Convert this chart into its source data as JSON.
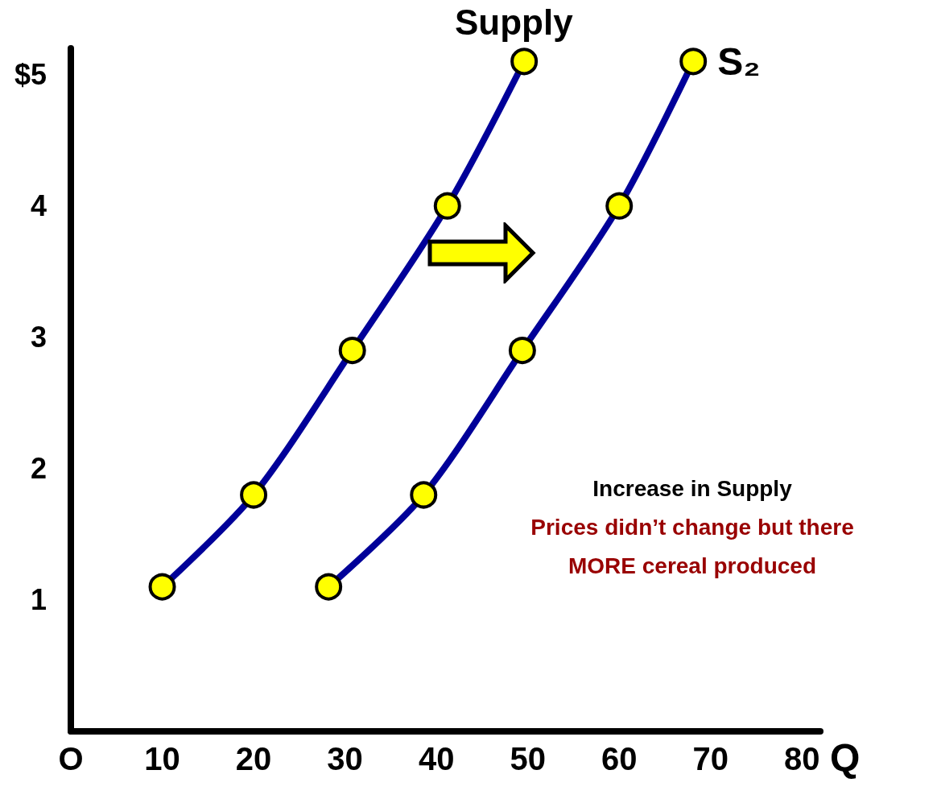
{
  "chart_data": {
    "type": "line",
    "title": "Supply",
    "xlabel": "Q",
    "xlim": [
      0,
      82
    ],
    "xticks": [
      {
        "value": 0,
        "label": "O"
      },
      10,
      20,
      30,
      40,
      50,
      60,
      70,
      80
    ],
    "ylim": [
      0,
      5.2
    ],
    "yticks": [
      1,
      2,
      3,
      4,
      {
        "value": 5,
        "label": "$5"
      }
    ],
    "grid": false,
    "legend": false,
    "marker": "circle",
    "line_style": "solid",
    "series": [
      {
        "color": "#000099",
        "x": [
          10,
          20,
          30.8,
          41.2,
          49.6
        ],
        "values": [
          1.1,
          1.8,
          2.9,
          4,
          5.1
        ]
      },
      {
        "name": "S₂",
        "color": "#000099",
        "x": [
          28.2,
          38.6,
          49.4,
          60,
          68.1
        ],
        "values": [
          1.1,
          1.8,
          2.9,
          4,
          5.1
        ]
      }
    ],
    "annotations": [
      "Increase in Supply",
      "Prices didn’t change but there",
      "MORE cereal produced"
    ]
  }
}
